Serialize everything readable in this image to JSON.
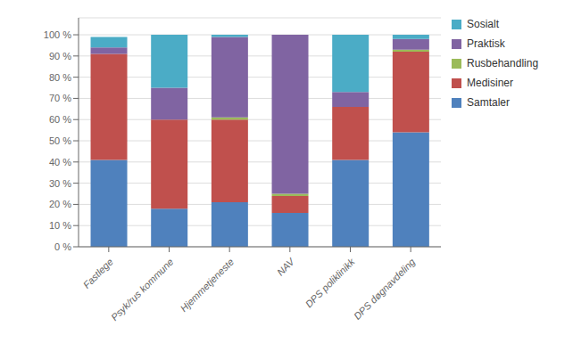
{
  "chart_data": {
    "type": "bar",
    "stacked": true,
    "categories": [
      "Fastlege",
      "Psyk/rus kommune",
      "Hjemmetjeneste",
      "NAV",
      "DPS poliklinikk",
      "DPS døgnavdeling"
    ],
    "series": [
      {
        "name": "Samtaler",
        "color": "#4F81BD",
        "values": [
          41,
          18,
          21,
          16,
          41,
          54
        ]
      },
      {
        "name": "Medisiner",
        "color": "#C0504D",
        "values": [
          50,
          42,
          39,
          8,
          25,
          38
        ]
      },
      {
        "name": "Rusbehandling",
        "color": "#9BBB59",
        "values": [
          0,
          0,
          1,
          1,
          0,
          1
        ]
      },
      {
        "name": "Praktisk",
        "color": "#8064A2",
        "values": [
          3,
          15,
          38,
          75,
          7,
          5
        ]
      },
      {
        "name": "Sosialt",
        "color": "#4BACC6",
        "values": [
          5,
          25,
          1,
          0,
          27,
          2
        ]
      }
    ],
    "ylim": [
      0,
      108
    ],
    "yticks": [
      {
        "value": 0,
        "label": "0 %"
      },
      {
        "value": 10,
        "label": "10 %"
      },
      {
        "value": 20,
        "label": "20 %"
      },
      {
        "value": 30,
        "label": "30 %"
      },
      {
        "value": 40,
        "label": "40 %"
      },
      {
        "value": 50,
        "label": "50 %"
      },
      {
        "value": 60,
        "label": "60 %"
      },
      {
        "value": 70,
        "label": "70 %"
      },
      {
        "value": 80,
        "label": "80 %"
      },
      {
        "value": 90,
        "label": "90 %"
      },
      {
        "value": 100,
        "label": "100 %"
      }
    ],
    "grid": true,
    "legend": "right"
  }
}
